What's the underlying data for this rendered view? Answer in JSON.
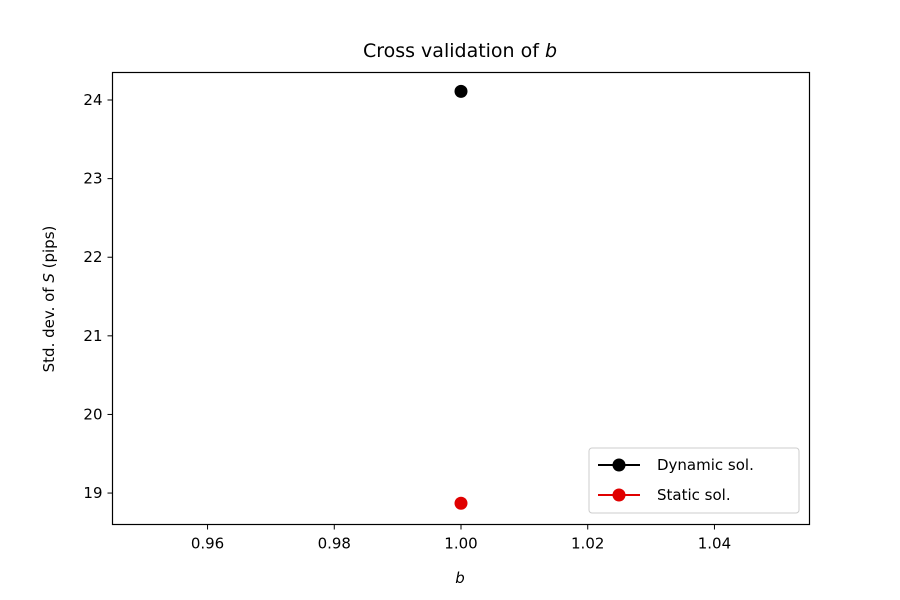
{
  "chart_data": {
    "type": "scatter",
    "title_prefix": "Cross validation of ",
    "title_var": "b",
    "xlabel": "b",
    "ylabel_prefix": "Std. dev. of ",
    "ylabel_var": "S",
    "ylabel_suffix": " (pips)",
    "xlim": [
      0.945,
      1.055
    ],
    "ylim": [
      18.6,
      24.35
    ],
    "xticks": [
      0.96,
      0.98,
      1.0,
      1.02,
      1.04
    ],
    "xtick_labels": [
      "0.96",
      "0.98",
      "1.00",
      "1.02",
      "1.04"
    ],
    "yticks": [
      19,
      20,
      21,
      22,
      23,
      24
    ],
    "ytick_labels": [
      "19",
      "20",
      "21",
      "22",
      "23",
      "24"
    ],
    "legend_position": "lower-right",
    "series": [
      {
        "name": "Dynamic sol.",
        "color": "#000000",
        "x": [
          1.0
        ],
        "y": [
          24.11
        ]
      },
      {
        "name": "Static sol.",
        "color": "#e00000",
        "x": [
          1.0
        ],
        "y": [
          18.87
        ]
      }
    ]
  }
}
